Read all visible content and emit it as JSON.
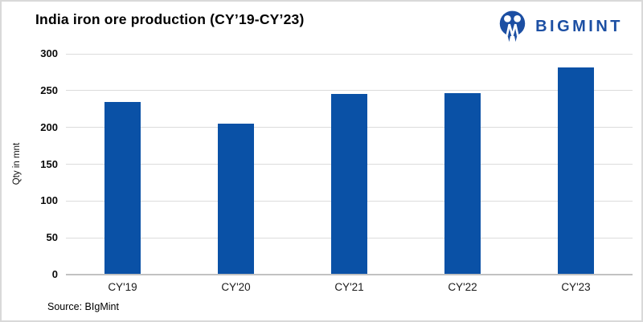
{
  "logo": {
    "brand": "BIGMINT",
    "color": "#1C4FA3"
  },
  "chart_data": {
    "type": "bar",
    "title": "India iron ore production (CY’19-CY’23)",
    "categories": [
      "CY'19",
      "CY'20",
      "CY'21",
      "CY'22",
      "CY'23"
    ],
    "values": [
      235,
      205,
      246,
      247,
      282
    ],
    "xlabel": "",
    "ylabel": "Qty in mnt",
    "ylim": [
      0,
      300
    ],
    "yticks": [
      0,
      50,
      100,
      150,
      200,
      250,
      300
    ],
    "grid": true,
    "legend": false,
    "bar_color": "#0A51A6",
    "gridline_color": "#DCDCDC",
    "axis_color": "#C2C2C2"
  },
  "footer": {
    "source": "Source: BIgMint"
  }
}
